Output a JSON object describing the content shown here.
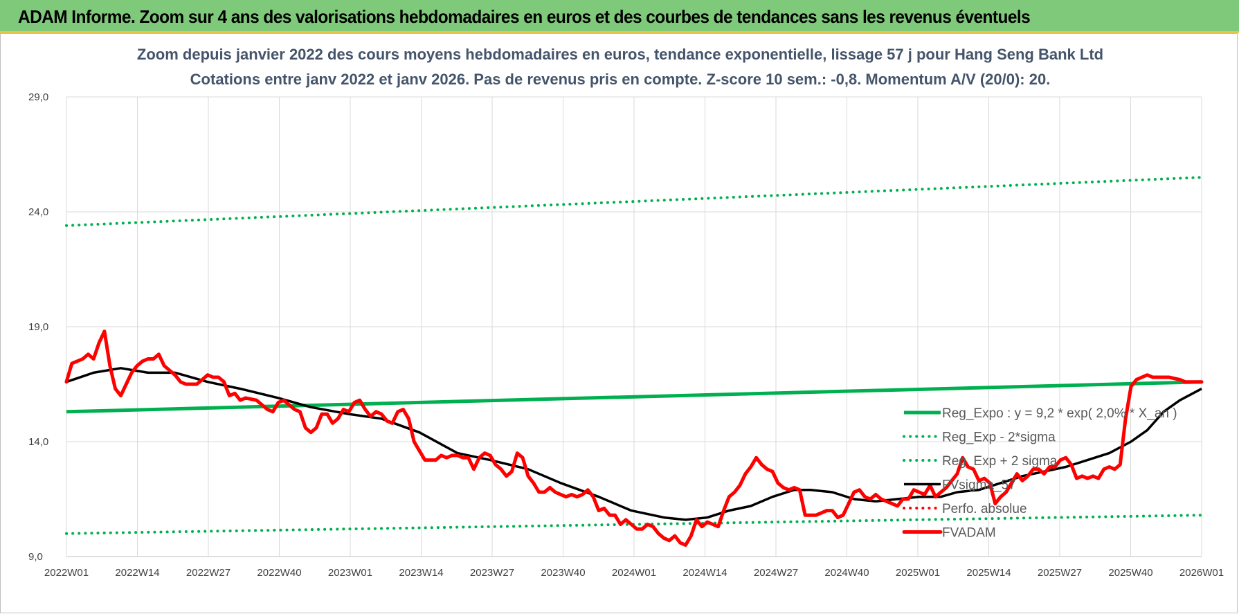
{
  "header": {
    "title": "ADAM Informe. Zoom sur 4 ans des valorisations hebdomadaires en euros et des courbes de tendances sans les revenus éventuels"
  },
  "chart_data": {
    "type": "line",
    "title": "Zoom depuis janvier 2022 des cours moyens hebdomadaires en euros, tendance exponentielle, lissage 57 j pour Hang Seng  Bank Ltd",
    "subtitle": "Cotations entre janv 2022 et janv 2026. Pas de revenus pris en compte. Z-score 10 sem.: -0,8. Momentum A/V (20/0): 20.",
    "xlabel": "",
    "ylabel": "",
    "ylim": [
      9,
      29
    ],
    "yticks": [
      "9,0",
      "14,0",
      "19,0",
      "24,0",
      "29,0"
    ],
    "xticks": [
      "2022W01",
      "2022W14",
      "2022W27",
      "2022W40",
      "2023W01",
      "2023W14",
      "2023W27",
      "2023W40",
      "2024W01",
      "2024W14",
      "2024W27",
      "2024W40",
      "2025W01",
      "2025W14",
      "2025W27",
      "2025W40",
      "2026W01"
    ],
    "x_unit": "weeks since 2022W01",
    "grid": true,
    "legend_position": "right",
    "series": [
      {
        "name": "Reg_Expo : y = 9,2 * exp( 2,0% * X_an )",
        "color": "#00b050",
        "style": "solid",
        "points": [
          [
            0,
            15.3
          ],
          [
            209,
            16.6
          ]
        ]
      },
      {
        "name": "Reg_Exp - 2*sigma",
        "color": "#00b050",
        "style": "dotted",
        "points": [
          [
            0,
            10.0
          ],
          [
            209,
            10.8
          ]
        ]
      },
      {
        "name": "Reg_Exp + 2 sigma",
        "color": "#00b050",
        "style": "dotted",
        "points": [
          [
            0,
            23.4
          ],
          [
            209,
            25.5
          ]
        ]
      },
      {
        "name": "FVsigma_57",
        "color": "#000000",
        "style": "solid",
        "points": [
          [
            0,
            16.6
          ],
          [
            5,
            17.0
          ],
          [
            10,
            17.2
          ],
          [
            15,
            17.0
          ],
          [
            20,
            17.0
          ],
          [
            26,
            16.6
          ],
          [
            32,
            16.3
          ],
          [
            39,
            15.9
          ],
          [
            45,
            15.5
          ],
          [
            52,
            15.2
          ],
          [
            58,
            15.0
          ],
          [
            65,
            14.4
          ],
          [
            72,
            13.5
          ],
          [
            78,
            13.2
          ],
          [
            85,
            12.8
          ],
          [
            91,
            12.2
          ],
          [
            98,
            11.6
          ],
          [
            104,
            11.0
          ],
          [
            110,
            10.7
          ],
          [
            114,
            10.6
          ],
          [
            118,
            10.7
          ],
          [
            122,
            11.0
          ],
          [
            126,
            11.2
          ],
          [
            130,
            11.6
          ],
          [
            134,
            11.9
          ],
          [
            137,
            11.9
          ],
          [
            141,
            11.8
          ],
          [
            145,
            11.5
          ],
          [
            149,
            11.4
          ],
          [
            153,
            11.5
          ],
          [
            157,
            11.6
          ],
          [
            161,
            11.6
          ],
          [
            164,
            11.8
          ],
          [
            168,
            11.9
          ],
          [
            172,
            12.2
          ],
          [
            176,
            12.5
          ],
          [
            180,
            12.7
          ],
          [
            184,
            12.9
          ],
          [
            188,
            13.2
          ],
          [
            192,
            13.5
          ],
          [
            196,
            14.0
          ],
          [
            199,
            14.5
          ],
          [
            202,
            15.3
          ],
          [
            205,
            15.8
          ],
          [
            209,
            16.3
          ]
        ]
      },
      {
        "name": "Perfo. absolue",
        "color": "#ff0000",
        "style": "dotted",
        "points": []
      },
      {
        "name": "FVADAM",
        "color": "#ff0000",
        "style": "solid",
        "points": [
          [
            0,
            16.6
          ],
          [
            1,
            17.4
          ],
          [
            3,
            17.6
          ],
          [
            4,
            17.8
          ],
          [
            5,
            17.6
          ],
          [
            6,
            18.3
          ],
          [
            7,
            18.8
          ],
          [
            8,
            17.3
          ],
          [
            9,
            16.3
          ],
          [
            10,
            16.0
          ],
          [
            11,
            16.5
          ],
          [
            12,
            17.0
          ],
          [
            13,
            17.3
          ],
          [
            14,
            17.5
          ],
          [
            15,
            17.6
          ],
          [
            16,
            17.6
          ],
          [
            17,
            17.8
          ],
          [
            18,
            17.3
          ],
          [
            19,
            17.1
          ],
          [
            20,
            16.9
          ],
          [
            21,
            16.6
          ],
          [
            22,
            16.5
          ],
          [
            24,
            16.5
          ],
          [
            25,
            16.7
          ],
          [
            26,
            16.9
          ],
          [
            27,
            16.8
          ],
          [
            28,
            16.8
          ],
          [
            29,
            16.6
          ],
          [
            30,
            16.0
          ],
          [
            31,
            16.1
          ],
          [
            32,
            15.8
          ],
          [
            33,
            15.9
          ],
          [
            35,
            15.8
          ],
          [
            36,
            15.6
          ],
          [
            37,
            15.4
          ],
          [
            38,
            15.3
          ],
          [
            39,
            15.7
          ],
          [
            40,
            15.8
          ],
          [
            41,
            15.6
          ],
          [
            42,
            15.4
          ],
          [
            43,
            15.3
          ],
          [
            44,
            14.6
          ],
          [
            45,
            14.4
          ],
          [
            46,
            14.6
          ],
          [
            47,
            15.2
          ],
          [
            48,
            15.2
          ],
          [
            49,
            14.8
          ],
          [
            50,
            15.0
          ],
          [
            51,
            15.4
          ],
          [
            52,
            15.3
          ],
          [
            53,
            15.7
          ],
          [
            54,
            15.8
          ],
          [
            55,
            15.4
          ],
          [
            56,
            15.1
          ],
          [
            57,
            15.3
          ],
          [
            58,
            15.2
          ],
          [
            59,
            14.9
          ],
          [
            60,
            14.8
          ],
          [
            61,
            15.3
          ],
          [
            62,
            15.4
          ],
          [
            63,
            15.0
          ],
          [
            64,
            14.0
          ],
          [
            65,
            13.6
          ],
          [
            66,
            13.2
          ],
          [
            68,
            13.2
          ],
          [
            69,
            13.4
          ],
          [
            70,
            13.3
          ],
          [
            71,
            13.4
          ],
          [
            72,
            13.4
          ],
          [
            73,
            13.3
          ],
          [
            74,
            13.3
          ],
          [
            75,
            12.8
          ],
          [
            76,
            13.3
          ],
          [
            77,
            13.5
          ],
          [
            78,
            13.4
          ],
          [
            79,
            13.0
          ],
          [
            80,
            12.8
          ],
          [
            81,
            12.5
          ],
          [
            82,
            12.7
          ],
          [
            83,
            13.5
          ],
          [
            84,
            13.3
          ],
          [
            85,
            12.5
          ],
          [
            86,
            12.2
          ],
          [
            87,
            11.8
          ],
          [
            88,
            11.8
          ],
          [
            89,
            12.0
          ],
          [
            90,
            11.8
          ],
          [
            91,
            11.7
          ],
          [
            92,
            11.6
          ],
          [
            93,
            11.7
          ],
          [
            94,
            11.6
          ],
          [
            95,
            11.7
          ],
          [
            96,
            11.9
          ],
          [
            97,
            11.6
          ],
          [
            98,
            11.0
          ],
          [
            99,
            11.1
          ],
          [
            100,
            10.8
          ],
          [
            101,
            10.8
          ],
          [
            102,
            10.4
          ],
          [
            103,
            10.6
          ],
          [
            104,
            10.4
          ],
          [
            105,
            10.2
          ],
          [
            106,
            10.2
          ],
          [
            107,
            10.4
          ],
          [
            108,
            10.3
          ],
          [
            109,
            10.0
          ],
          [
            110,
            9.8
          ],
          [
            111,
            9.7
          ],
          [
            112,
            9.9
          ],
          [
            113,
            9.6
          ],
          [
            114,
            9.5
          ],
          [
            115,
            9.9
          ],
          [
            116,
            10.6
          ],
          [
            117,
            10.3
          ],
          [
            118,
            10.5
          ],
          [
            119,
            10.4
          ],
          [
            120,
            10.3
          ],
          [
            121,
            11.0
          ],
          [
            122,
            11.6
          ],
          [
            123,
            11.8
          ],
          [
            124,
            12.1
          ],
          [
            125,
            12.6
          ],
          [
            126,
            12.9
          ],
          [
            127,
            13.3
          ],
          [
            128,
            13.0
          ],
          [
            129,
            12.8
          ],
          [
            130,
            12.7
          ],
          [
            131,
            12.2
          ],
          [
            132,
            12.0
          ],
          [
            133,
            11.9
          ],
          [
            134,
            12.0
          ],
          [
            135,
            11.9
          ],
          [
            136,
            10.8
          ],
          [
            137,
            10.8
          ],
          [
            138,
            10.8
          ],
          [
            139,
            10.9
          ],
          [
            140,
            11.0
          ],
          [
            141,
            11.0
          ],
          [
            142,
            10.7
          ],
          [
            143,
            10.8
          ],
          [
            144,
            11.3
          ],
          [
            145,
            11.8
          ],
          [
            146,
            11.9
          ],
          [
            147,
            11.6
          ],
          [
            148,
            11.5
          ],
          [
            149,
            11.7
          ],
          [
            150,
            11.5
          ],
          [
            151,
            11.4
          ],
          [
            152,
            11.3
          ],
          [
            153,
            11.2
          ],
          [
            154,
            11.5
          ],
          [
            155,
            11.5
          ],
          [
            156,
            11.9
          ],
          [
            157,
            11.8
          ],
          [
            158,
            11.7
          ],
          [
            159,
            12.1
          ],
          [
            160,
            11.6
          ],
          [
            161,
            11.8
          ],
          [
            162,
            12.0
          ],
          [
            163,
            12.3
          ],
          [
            164,
            12.6
          ],
          [
            165,
            13.3
          ],
          [
            166,
            12.9
          ],
          [
            167,
            12.8
          ],
          [
            168,
            12.3
          ],
          [
            169,
            12.4
          ],
          [
            170,
            12.2
          ],
          [
            171,
            11.3
          ],
          [
            172,
            11.6
          ],
          [
            173,
            11.8
          ],
          [
            174,
            12.2
          ],
          [
            175,
            12.6
          ],
          [
            176,
            12.3
          ],
          [
            177,
            12.5
          ],
          [
            178,
            12.8
          ],
          [
            179,
            12.8
          ],
          [
            180,
            12.6
          ],
          [
            181,
            12.9
          ],
          [
            182,
            12.9
          ],
          [
            183,
            13.2
          ],
          [
            184,
            13.3
          ],
          [
            185,
            13.0
          ],
          [
            186,
            12.4
          ],
          [
            187,
            12.5
          ],
          [
            188,
            12.4
          ],
          [
            189,
            12.5
          ],
          [
            190,
            12.4
          ],
          [
            191,
            12.8
          ],
          [
            192,
            12.9
          ],
          [
            193,
            12.8
          ],
          [
            194,
            13.0
          ],
          [
            195,
            15.0
          ],
          [
            196,
            16.4
          ],
          [
            197,
            16.7
          ],
          [
            198,
            16.8
          ],
          [
            199,
            16.9
          ],
          [
            200,
            16.8
          ],
          [
            201,
            16.8
          ],
          [
            202,
            16.8
          ],
          [
            203,
            16.8
          ],
          [
            205,
            16.7
          ],
          [
            206,
            16.6
          ],
          [
            209,
            16.6
          ]
        ]
      }
    ]
  }
}
